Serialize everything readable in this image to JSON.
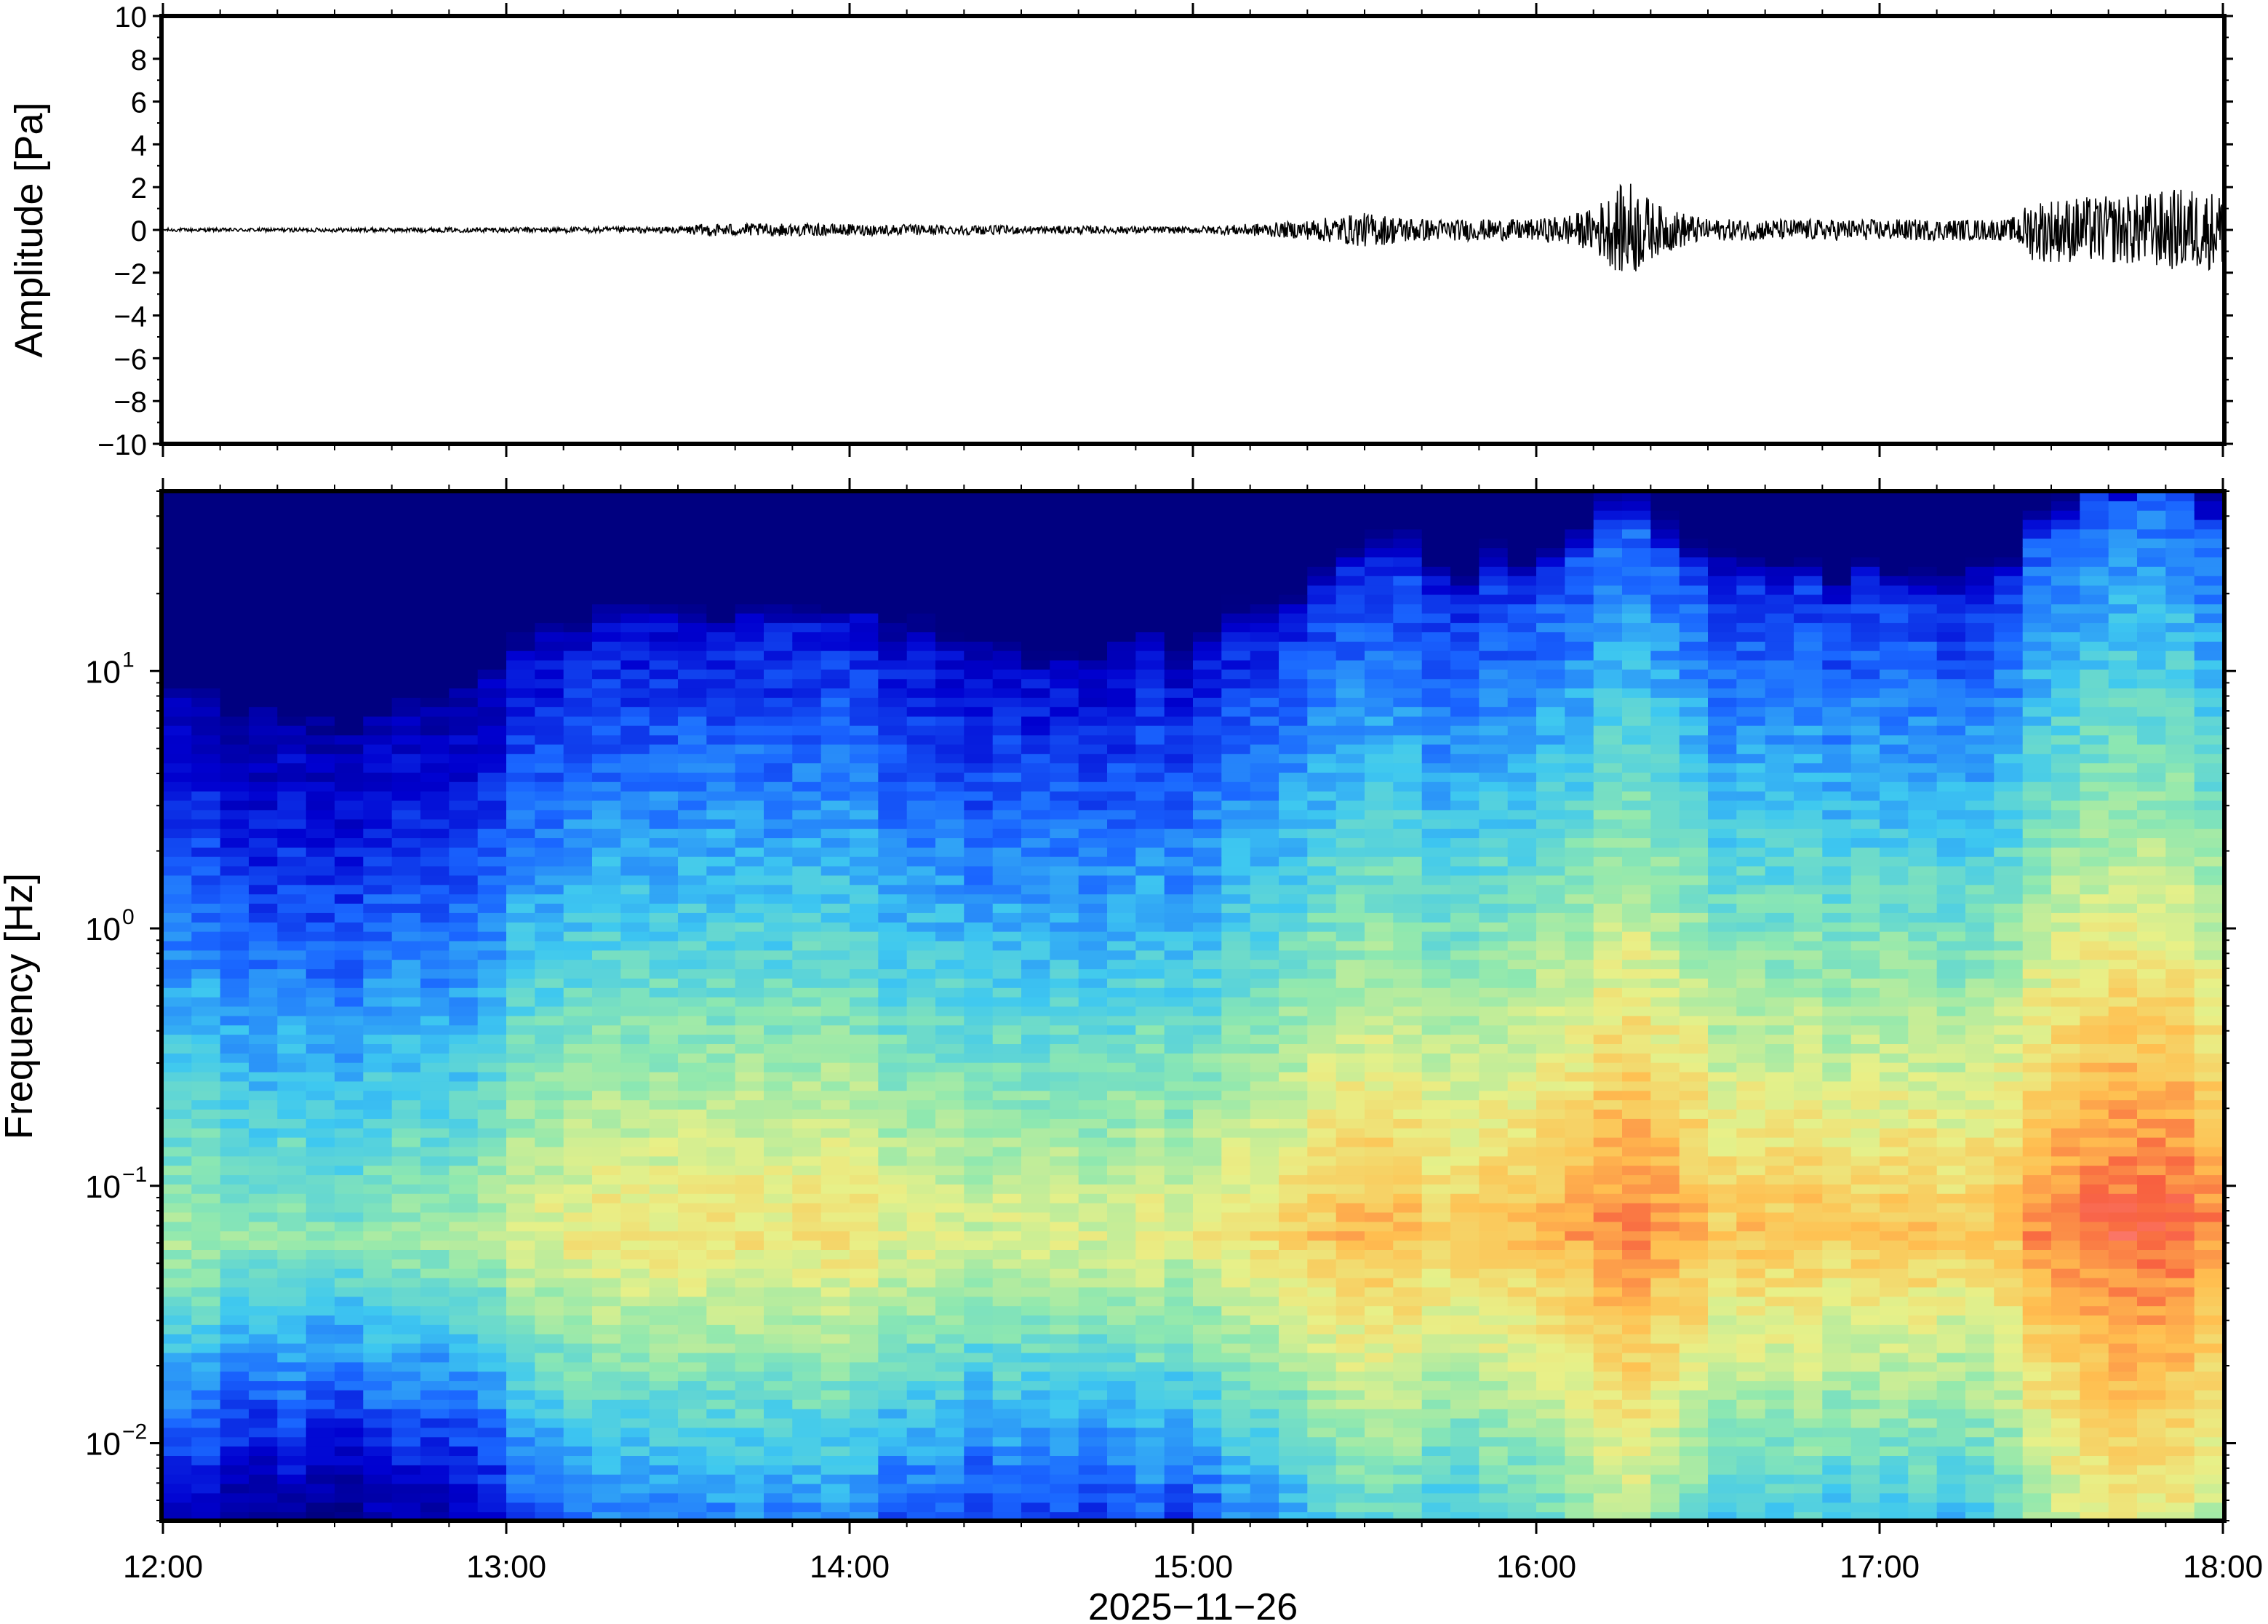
{
  "chart_data": [
    {
      "type": "line",
      "title": "",
      "xlabel": "",
      "ylabel": "Amplitude [Pa]",
      "ylim": [
        -10,
        10
      ],
      "yticks": [
        10,
        8,
        6,
        4,
        2,
        0,
        -2,
        -4,
        -6,
        -8,
        -10
      ],
      "ytick_labels": [
        "10",
        "8",
        "6",
        "4",
        "2",
        "0",
        "−2",
        "−4",
        "−6",
        "−8",
        "−10"
      ],
      "xlim": [
        "12:00",
        "18:00"
      ],
      "grid": false,
      "series": [
        {
          "color": "#000000",
          "envelope_time_hours": [
            12.0,
            12.5,
            13.0,
            13.5,
            13.58,
            13.8,
            14.2,
            14.5,
            15.0,
            15.3,
            15.5,
            15.7,
            16.0,
            16.15,
            16.27,
            16.35,
            16.5,
            17.0,
            17.38,
            17.45,
            17.7,
            17.9,
            18.0
          ],
          "envelope_amplitude_pa": [
            0.08,
            0.1,
            0.12,
            0.15,
            0.3,
            0.3,
            0.25,
            0.2,
            0.15,
            0.4,
            0.8,
            0.5,
            0.5,
            0.9,
            2.4,
            1.2,
            0.5,
            0.5,
            0.5,
            1.5,
            1.6,
            2.0,
            1.8
          ]
        }
      ]
    },
    {
      "type": "heatmap",
      "title": "",
      "xlabel": "2025−11−26",
      "ylabel": "Frequency [Hz]",
      "yscale": "log",
      "ylim": [
        0.005,
        50
      ],
      "yticks": [
        0.01,
        0.1,
        1,
        10
      ],
      "ytick_labels": [
        {
          "base": "10",
          "exp": "−2"
        },
        {
          "base": "10",
          "exp": "−1"
        },
        {
          "base": "10",
          "exp": "0"
        },
        {
          "base": "10",
          "exp": "1"
        }
      ],
      "xlim": [
        "12:00",
        "18:00"
      ],
      "xticks": [
        "12:00",
        "13:00",
        "14:00",
        "15:00",
        "16:00",
        "17:00",
        "18:00"
      ],
      "colormap": "rainbow (dark navy low → blue → cyan → green → yellow → orange → red → pink high)",
      "colors": [
        "#000080",
        "#0000d0",
        "#1a66ff",
        "#3ec8f0",
        "#8ee8b0",
        "#e8f088",
        "#ffbf50",
        "#f86040",
        "#ff9aa8"
      ],
      "grid": false,
      "activity_time_hours": [
        12.0,
        12.5,
        12.9,
        13.0,
        13.5,
        14.0,
        14.2,
        14.5,
        15.0,
        15.3,
        15.5,
        16.0,
        16.2,
        16.3,
        16.5,
        17.0,
        17.35,
        17.45,
        17.8,
        18.0
      ],
      "activity_level": [
        0.1,
        0.0,
        0.05,
        0.25,
        0.45,
        0.45,
        0.3,
        0.3,
        0.3,
        0.55,
        0.65,
        0.6,
        0.85,
        0.9,
        0.6,
        0.6,
        0.55,
        0.85,
        0.95,
        0.9
      ]
    }
  ]
}
